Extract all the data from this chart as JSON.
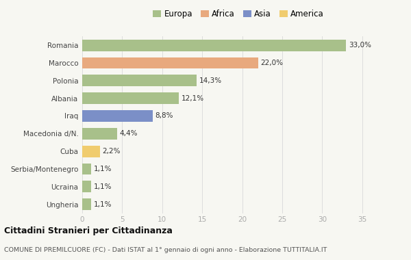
{
  "countries": [
    "Romania",
    "Marocco",
    "Polonia",
    "Albania",
    "Iraq",
    "Macedonia d/N.",
    "Cuba",
    "Serbia/Montenegro",
    "Ucraina",
    "Ungheria"
  ],
  "values": [
    33.0,
    22.0,
    14.3,
    12.1,
    8.8,
    4.4,
    2.2,
    1.1,
    1.1,
    1.1
  ],
  "labels": [
    "33,0%",
    "22,0%",
    "14,3%",
    "12,1%",
    "8,8%",
    "4,4%",
    "2,2%",
    "1,1%",
    "1,1%",
    "1,1%"
  ],
  "continents": [
    "Europa",
    "Africa",
    "Europa",
    "Europa",
    "Asia",
    "Europa",
    "America",
    "Europa",
    "Europa",
    "Europa"
  ],
  "bar_colors": [
    "#a8c08a",
    "#e8a97e",
    "#a8c08a",
    "#a8c08a",
    "#7b8fc7",
    "#a8c08a",
    "#f0cc6e",
    "#a8c08a",
    "#a8c08a",
    "#a8c08a"
  ],
  "xlim": [
    0,
    37
  ],
  "xticks": [
    0,
    5,
    10,
    15,
    20,
    25,
    30,
    35
  ],
  "title": "Cittadini Stranieri per Cittadinanza",
  "subtitle": "COMUNE DI PREMILCUORE (FC) - Dati ISTAT al 1° gennaio di ogni anno - Elaborazione TUTTITALIA.IT",
  "legend_labels": [
    "Europa",
    "Africa",
    "Asia",
    "America"
  ],
  "legend_colors": [
    "#a8c08a",
    "#e8a97e",
    "#7b8fc7",
    "#f0cc6e"
  ],
  "bg_color": "#f7f7f2"
}
